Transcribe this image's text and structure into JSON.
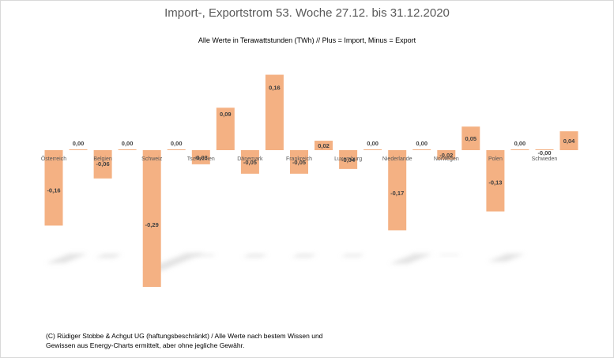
{
  "chart_data": {
    "type": "bar",
    "title": "Import-, Exportstrom 53. Woche 27.12. bis 31.12.2020",
    "subtitle": "Alle Werte in Terawattstunden (TWh) // Plus = Import, Minus = Export",
    "categories": [
      "Österreich",
      "Belgien",
      "Schweiz",
      "Tschechien",
      "Dänemark",
      "Frankreich",
      "Luxemburg",
      "Niederlande",
      "Norwegen",
      "Polen",
      "Schweden"
    ],
    "series": [
      {
        "values": [
          -0.16,
          -0.06,
          -0.29,
          -0.03,
          -0.05,
          -0.05,
          -0.04,
          -0.17,
          -0.02,
          -0.13,
          -0.0
        ]
      },
      {
        "values": [
          0.0,
          0.0,
          0.0,
          0.09,
          0.16,
          0.02,
          0.0,
          0.0,
          0.05,
          0.0,
          0.04
        ]
      }
    ],
    "data_labels": {
      "export": [
        "-0,16",
        "-0,06",
        "-0,29",
        "-0,03",
        "-0,05",
        "-0,05",
        "-0,04",
        "-0,17",
        "-0,02",
        "-0,13",
        "-0,00"
      ],
      "import": [
        "0,00",
        "0,00",
        "0,00",
        "0,09",
        "0,16",
        "0,02",
        "0,00",
        "0,00",
        "0,05",
        "0,00",
        "0,04"
      ]
    },
    "ylim": [
      -0.29,
      0.16
    ],
    "grid": false,
    "legend": "none",
    "bar_color": "#f4b183"
  },
  "footer": {
    "line1": "(C) Rüdiger Stobbe & Achgut UG (haftungsbeschränkt) / Alle Werte nach bestem Wissen und",
    "line2": "Gewissen aus Energy-Charts ermittelt, aber ohne jegliche Gewähr."
  }
}
